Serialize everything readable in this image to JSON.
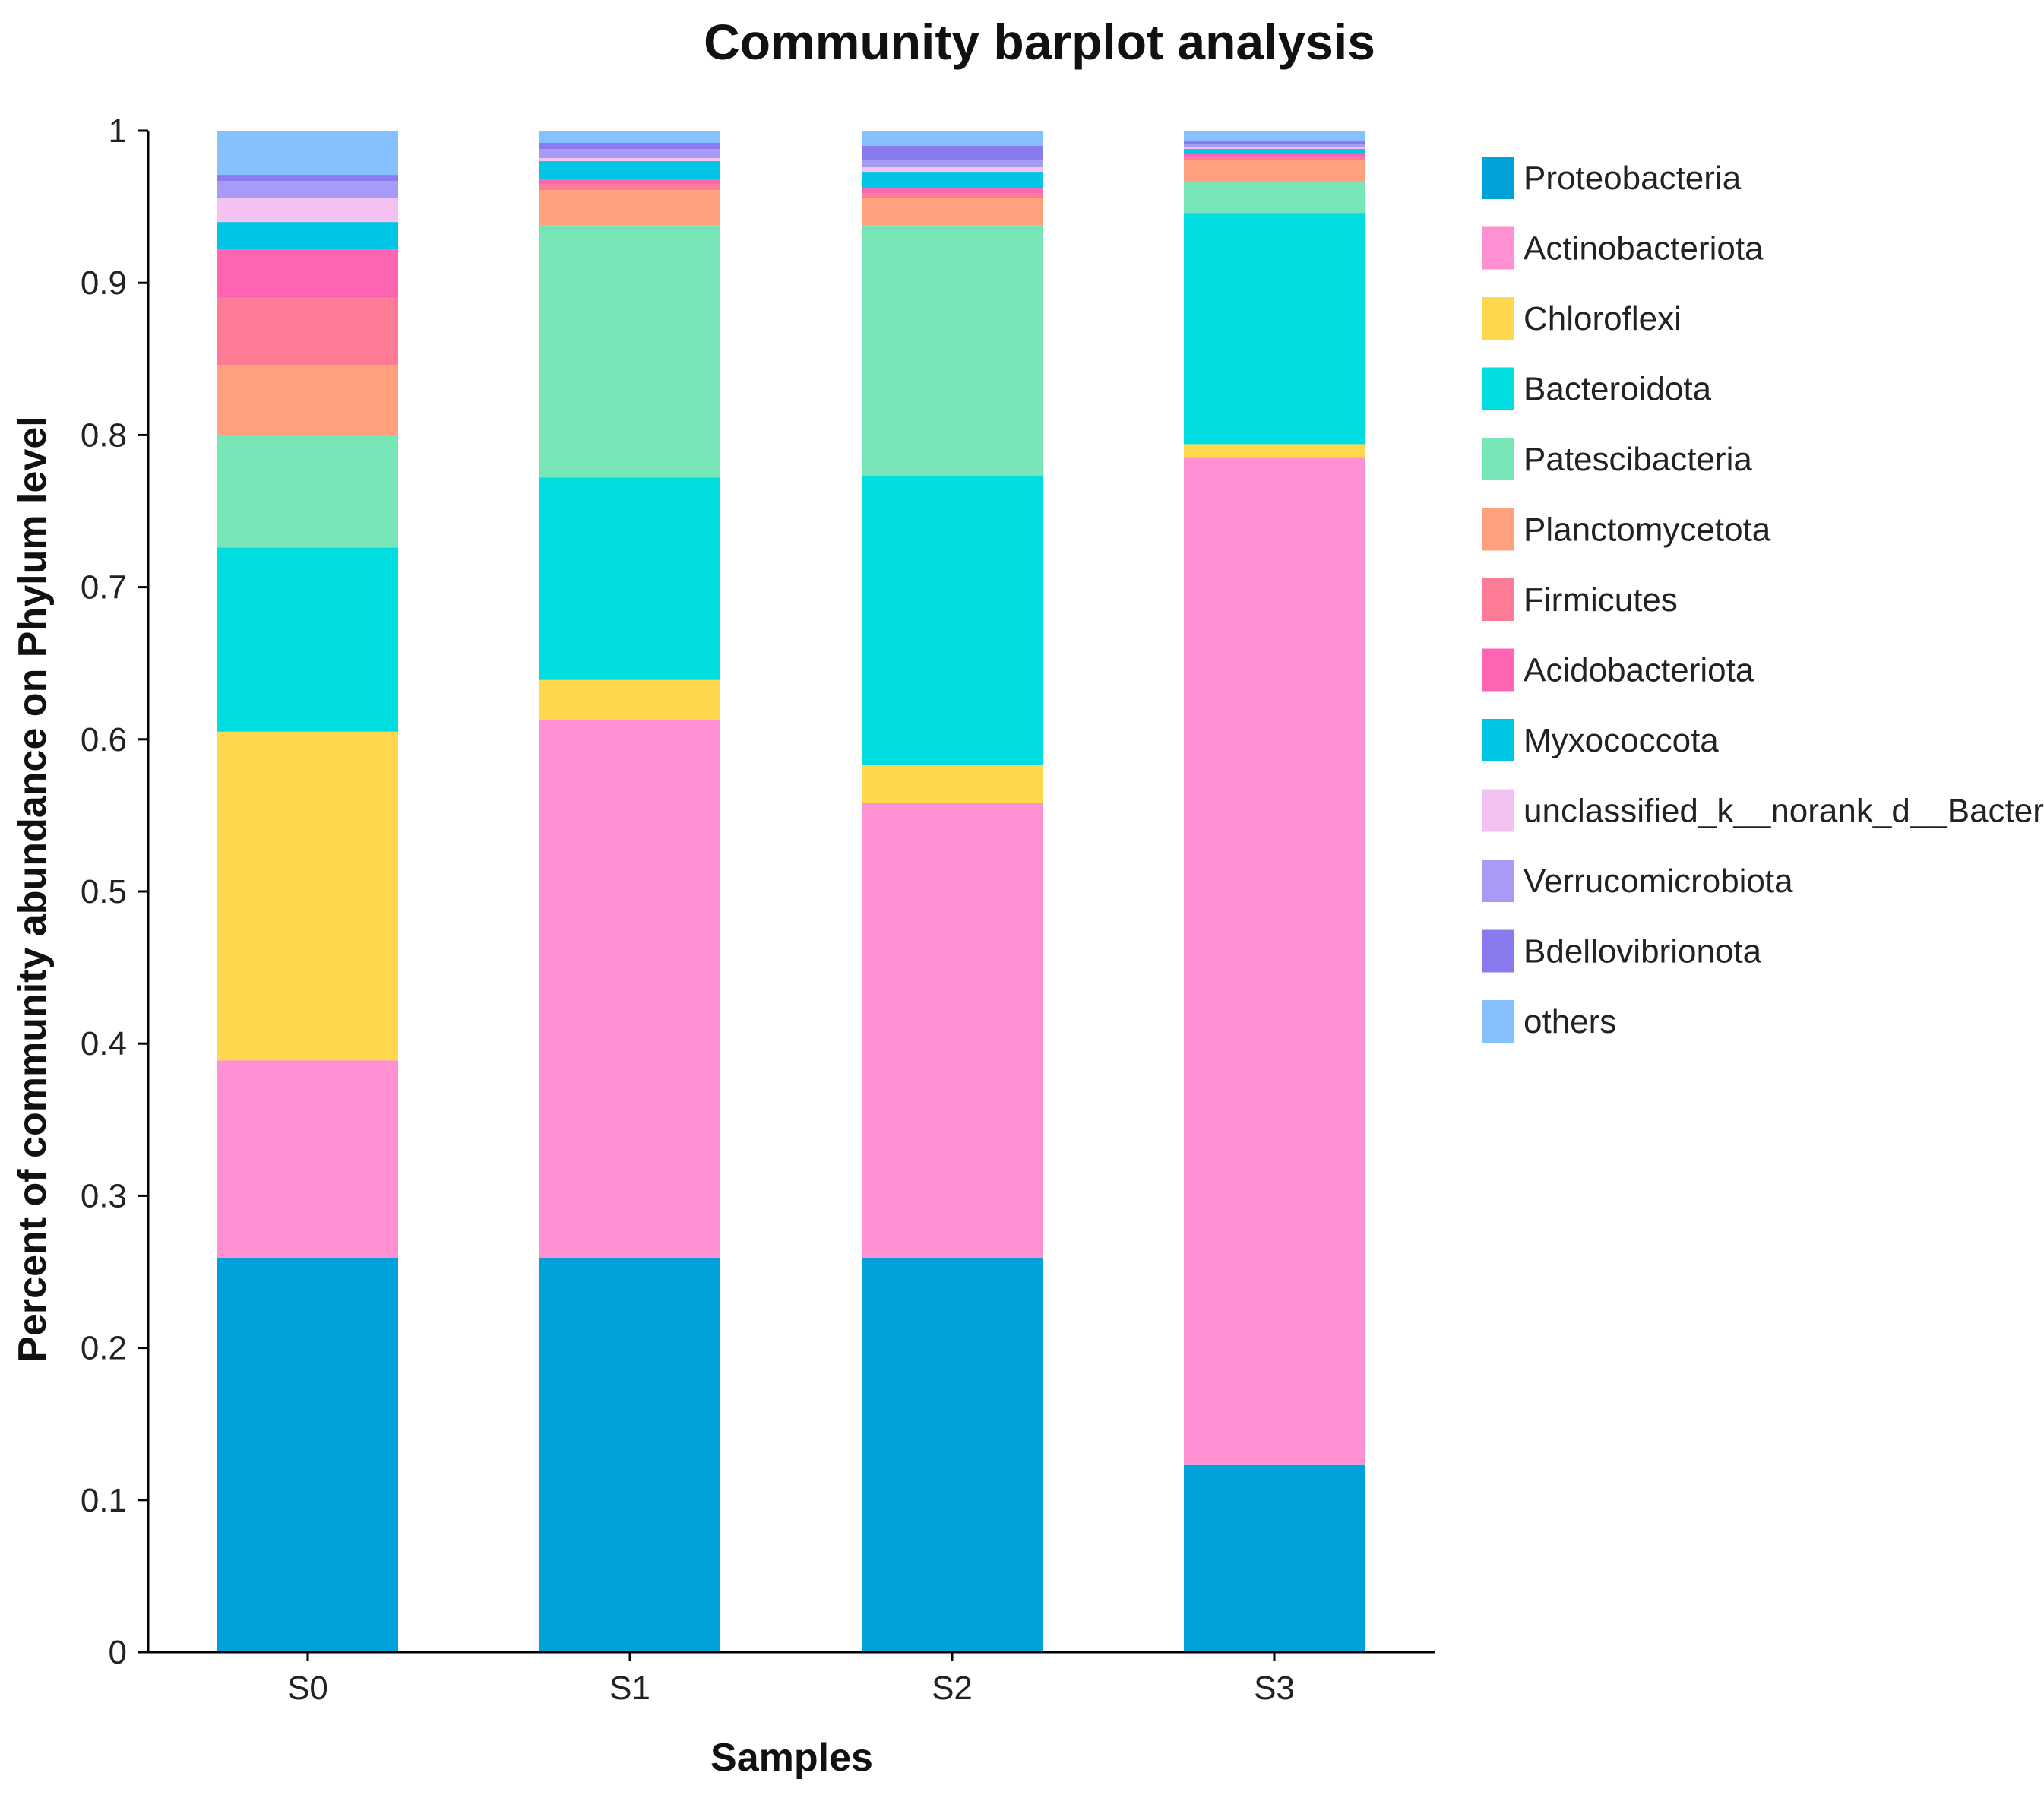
{
  "chart_data": {
    "type": "bar",
    "stacked": true,
    "title": "Community barplot analysis",
    "xlabel": "Samples",
    "ylabel": "Percent of community abundance on Phylum level",
    "ylim": [
      0,
      1
    ],
    "yticks": [
      "0",
      "0.1",
      "0.2",
      "0.3",
      "0.4",
      "0.5",
      "0.6",
      "0.7",
      "0.8",
      "0.9",
      "1"
    ],
    "categories": [
      "S0",
      "S1",
      "S2",
      "S3"
    ],
    "legend_position": "right",
    "series": [
      {
        "name": "Proteobacteria",
        "color": "#00A2DA",
        "values": [
          0.259,
          0.259,
          0.259,
          0.123
        ]
      },
      {
        "name": "Actinobacteriota",
        "color": "#FF91D3",
        "values": [
          0.13,
          0.354,
          0.299,
          0.662
        ]
      },
      {
        "name": "Chloroflexi",
        "color": "#FFD84E",
        "values": [
          0.216,
          0.026,
          0.025,
          0.009
        ]
      },
      {
        "name": "Bacteroidota",
        "color": "#00DDE0",
        "values": [
          0.121,
          0.133,
          0.19,
          0.152
        ]
      },
      {
        "name": "Patescibacteria",
        "color": "#78E5B7",
        "values": [
          0.074,
          0.166,
          0.165,
          0.02
        ]
      },
      {
        "name": "Planctomycetota",
        "color": "#FFA17F",
        "values": [
          0.046,
          0.023,
          0.018,
          0.015
        ]
      },
      {
        "name": "Firmicutes",
        "color": "#FF7B95",
        "values": [
          0.044,
          0.004,
          0.003,
          0.002
        ]
      },
      {
        "name": "Acidobacteriota",
        "color": "#FF64B2",
        "values": [
          0.032,
          0.003,
          0.003,
          0.002
        ]
      },
      {
        "name": "Myxococcota",
        "color": "#00C5E5",
        "values": [
          0.018,
          0.012,
          0.011,
          0.003
        ]
      },
      {
        "name": "unclassified_k__norank_d__Bacteria",
        "color": "#F4C2F1",
        "values": [
          0.016,
          0.002,
          0.003,
          0.001
        ]
      },
      {
        "name": "Verrucomicrobiota",
        "color": "#A89BF5",
        "values": [
          0.011,
          0.006,
          0.005,
          0.002
        ]
      },
      {
        "name": "Bdellovibrionota",
        "color": "#8A7AF0",
        "values": [
          0.004,
          0.004,
          0.009,
          0.002
        ]
      },
      {
        "name": "others",
        "color": "#86C0FF",
        "values": [
          0.029,
          0.008,
          0.01,
          0.007
        ]
      }
    ]
  }
}
